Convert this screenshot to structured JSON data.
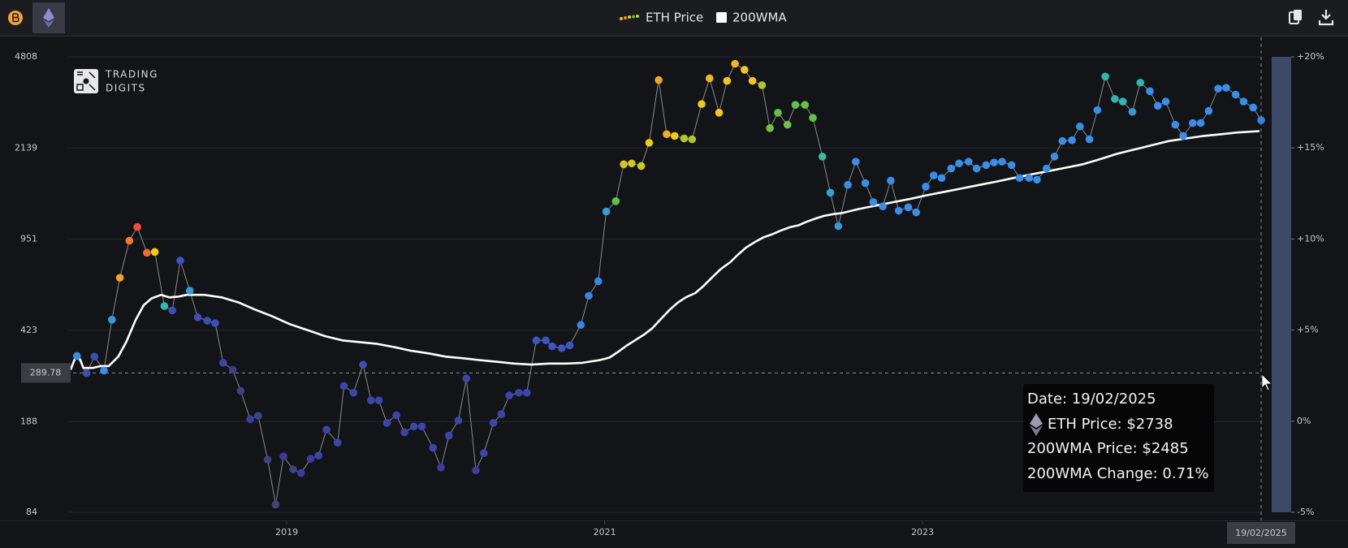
{
  "brand": {
    "line1": "TRADING",
    "line2": "DIGITS"
  },
  "chart_data": {
    "type": "line",
    "log_y": true,
    "grid": true,
    "xlim": [
      2017.62,
      2025.13
    ],
    "xticks": [
      2019,
      2021,
      2023
    ],
    "ylim": [
      84,
      4808
    ],
    "yticks": [
      84,
      188,
      423,
      951,
      2139,
      4808
    ],
    "series": [
      {
        "name": "ETH Price",
        "line_color": "#8a8b8e",
        "x": [
          2017.68,
          2017.74,
          2017.79,
          2017.85,
          2017.9,
          2017.95,
          2018.01,
          2018.06,
          2018.12,
          2018.17,
          2018.23,
          2018.28,
          2018.33,
          2018.39,
          2018.44,
          2018.5,
          2018.55,
          2018.6,
          2018.66,
          2018.71,
          2018.77,
          2018.82,
          2018.88,
          2018.93,
          2018.98,
          2019.04,
          2019.09,
          2019.15,
          2019.2,
          2019.25,
          2019.32,
          2019.36,
          2019.42,
          2019.48,
          2019.53,
          2019.58,
          2019.63,
          2019.69,
          2019.74,
          2019.8,
          2019.85,
          2019.92,
          2019.97,
          2020.02,
          2020.08,
          2020.13,
          2020.19,
          2020.24,
          2020.3,
          2020.35,
          2020.4,
          2020.46,
          2020.51,
          2020.57,
          2020.63,
          2020.67,
          2020.73,
          2020.78,
          2020.85,
          2020.9,
          2020.96,
          2021.01,
          2021.07,
          2021.12,
          2021.17,
          2021.23,
          2021.28,
          2021.34,
          2021.39,
          2021.44,
          2021.5,
          2021.55,
          2021.61,
          2021.66,
          2021.72,
          2021.77,
          2021.82,
          2021.88,
          2021.93,
          2021.99,
          2022.04,
          2022.09,
          2022.15,
          2022.2,
          2022.26,
          2022.31,
          2022.37,
          2022.42,
          2022.47,
          2022.53,
          2022.58,
          2022.64,
          2022.69,
          2022.75,
          2022.8,
          2022.85,
          2022.91,
          2022.96,
          2023.02,
          2023.07,
          2023.12,
          2023.18,
          2023.23,
          2023.29,
          2023.34,
          2023.4,
          2023.45,
          2023.5,
          2023.56,
          2023.61,
          2023.67,
          2023.72,
          2023.78,
          2023.83,
          2023.88,
          2023.94,
          2023.99,
          2024.05,
          2024.1,
          2024.15,
          2024.21,
          2024.26,
          2024.32,
          2024.37,
          2024.43,
          2024.48,
          2024.53,
          2024.59,
          2024.64,
          2024.7,
          2024.75,
          2024.8,
          2024.86,
          2024.91,
          2024.97,
          2025.02,
          2025.08,
          2025.13
        ],
        "values": [
          337,
          289,
          335,
          296,
          465,
          675,
          938,
          1060,
          843,
          849,
          525,
          505,
          787,
          602,
          475,
          461,
          451,
          317,
          298,
          247,
          192,
          198,
          134,
          90,
          138,
          123,
          119,
          135,
          139,
          175,
          156,
          258,
          243,
          312,
          227,
          227,
          186,
          199,
          171,
          180,
          180,
          149,
          125,
          166,
          190,
          276,
          122,
          142,
          186,
          201,
          237,
          243,
          243,
          387,
          387,
          367,
          361,
          370,
          444,
          575,
          655,
          1216,
          1333,
          1851,
          1865,
          1823,
          2240,
          3912,
          2418,
          2381,
          2328,
          2310,
          3159,
          3972,
          2927,
          3883,
          4522,
          4286,
          3883,
          3736,
          2551,
          2927,
          2630,
          3136,
          3136,
          2795,
          1982,
          1438,
          1068,
          1541,
          1894,
          1565,
          1323,
          1273,
          1601,
          1225,
          1263,
          1207,
          1518,
          1676,
          1638,
          1782,
          1865,
          1894,
          1782,
          1837,
          1880,
          1894,
          1837,
          1638,
          1638,
          1613,
          1782,
          1982,
          2275,
          2292,
          2590,
          2310,
          2994,
          4034,
          3307,
          3231,
          2949,
          3824,
          3542,
          3111,
          3231,
          2630,
          2381,
          2670,
          2670,
          2971,
          3625,
          3652,
          3436,
          3231,
          3064,
          2738
        ],
        "changes": [
          1,
          -1,
          -1,
          1,
          1.5,
          13,
          16,
          19,
          17,
          10,
          3,
          -1,
          -0.5,
          1.5,
          -1,
          -1,
          -1,
          -1.5,
          -2.5,
          -3.5,
          -2,
          -3.5,
          -4,
          -4.5,
          -2,
          -3.5,
          -2,
          -2,
          -1.5,
          -1.5,
          -1.5,
          -1.5,
          -1.5,
          -1,
          -1.5,
          -1.5,
          -1.5,
          -1.5,
          -1.5,
          -1.5,
          -1.5,
          -1.5,
          -2,
          -1.5,
          -1.5,
          -1.5,
          -2,
          -1.5,
          -1.5,
          -1.5,
          -1.5,
          -1.5,
          -1.5,
          -0.5,
          -0.5,
          -0.5,
          -0.5,
          -0.5,
          0.8,
          0.8,
          0.8,
          1.5,
          5.5,
          9,
          9,
          9,
          10,
          13,
          12,
          10,
          8,
          8,
          10,
          11.5,
          10,
          10,
          11.5,
          10,
          10,
          8,
          6,
          5.5,
          6,
          5.5,
          5.5,
          5.5,
          3.5,
          2,
          1.5,
          1,
          1,
          1,
          1,
          1,
          1,
          1,
          1,
          1,
          1,
          1,
          1,
          1,
          1,
          1,
          1,
          1,
          1,
          1,
          1,
          1,
          1,
          1,
          1,
          1,
          1,
          1,
          1,
          1,
          1,
          3.2,
          2.8,
          2.8,
          1.5,
          2.8,
          1,
          1,
          1,
          1,
          1,
          1,
          1,
          1,
          1,
          1,
          1,
          1,
          1,
          0.71
        ]
      },
      {
        "name": "200WMA",
        "color": "#ffffff",
        "x": [
          2017.64,
          2017.67,
          2017.7,
          2017.72,
          2017.78,
          2017.83,
          2017.88,
          2017.94,
          2017.99,
          2018.05,
          2018.1,
          2018.15,
          2018.21,
          2018.26,
          2018.32,
          2018.37,
          2018.48,
          2018.59,
          2018.7,
          2018.8,
          2018.91,
          2019.02,
          2019.13,
          2019.24,
          2019.35,
          2019.46,
          2019.57,
          2019.68,
          2019.78,
          2019.89,
          2020.0,
          2020.11,
          2020.21,
          2020.32,
          2020.43,
          2020.54,
          2020.65,
          2020.76,
          2020.86,
          2020.97,
          2021.03,
          2021.08,
          2021.14,
          2021.19,
          2021.25,
          2021.3,
          2021.35,
          2021.41,
          2021.46,
          2021.51,
          2021.57,
          2021.62,
          2021.68,
          2021.73,
          2021.79,
          2021.84,
          2021.89,
          2021.95,
          2022.0,
          2022.06,
          2022.11,
          2022.17,
          2022.22,
          2022.27,
          2022.33,
          2022.38,
          2022.44,
          2022.49,
          2022.6,
          2022.71,
          2022.82,
          2022.93,
          2023.03,
          2023.14,
          2023.25,
          2023.36,
          2023.47,
          2023.57,
          2023.68,
          2023.79,
          2023.9,
          2024.01,
          2024.12,
          2024.22,
          2024.33,
          2024.44,
          2024.55,
          2024.66,
          2024.77,
          2024.88,
          2024.98,
          2025.12
        ],
        "values": [
          298,
          332,
          327,
          303,
          303,
          308,
          308,
          335,
          381,
          465,
          529,
          562,
          580,
          567,
          571,
          580,
          580,
          567,
          541,
          509,
          479,
          447,
          424,
          402,
          387,
          381,
          375,
          364,
          353,
          345,
          335,
          330,
          325,
          320,
          315,
          312,
          315,
          315,
          317,
          325,
          332,
          348,
          370,
          387,
          408,
          431,
          465,
          509,
          541,
          567,
          589,
          626,
          681,
          729,
          775,
          830,
          883,
          931,
          967,
          997,
          1028,
          1060,
          1076,
          1110,
          1144,
          1170,
          1189,
          1198,
          1244,
          1283,
          1323,
          1363,
          1406,
          1450,
          1494,
          1541,
          1589,
          1638,
          1689,
          1741,
          1795,
          1851,
          1938,
          2029,
          2108,
          2190,
          2275,
          2328,
          2381,
          2418,
          2455,
          2485
        ]
      }
    ],
    "colorbar": {
      "lim": [
        -5,
        20
      ],
      "colorscale": [
        [
          -5,
          "#3c4a68"
        ],
        [
          -2,
          "#3c3c9c"
        ],
        [
          0,
          "#3b5fd0"
        ],
        [
          1,
          "#3a8ee8"
        ],
        [
          3,
          "#2fb8b0"
        ],
        [
          5,
          "#50c050"
        ],
        [
          10,
          "#f0c81e"
        ],
        [
          15,
          "#f08a30"
        ],
        [
          20,
          "#f0403a"
        ]
      ],
      "ticks": [
        {
          "value": 20,
          "label": "+20%"
        },
        {
          "value": 15,
          "label": "+15%"
        },
        {
          "value": 10,
          "label": "+10%"
        },
        {
          "value": 5,
          "label": "+5%"
        },
        {
          "value": 0,
          "label": "0%"
        },
        {
          "value": -5,
          "label": "-5%"
        }
      ]
    },
    "crosshair": {
      "y": 289.78,
      "x": 2025.13,
      "x_label": "19/02/2025"
    },
    "tooltip": {
      "date": "Date: 19/02/2025",
      "price": "ETH Price: $2738",
      "wma": "200WMA Price: $2485",
      "change": "200WMA Change: 0.71%"
    }
  }
}
